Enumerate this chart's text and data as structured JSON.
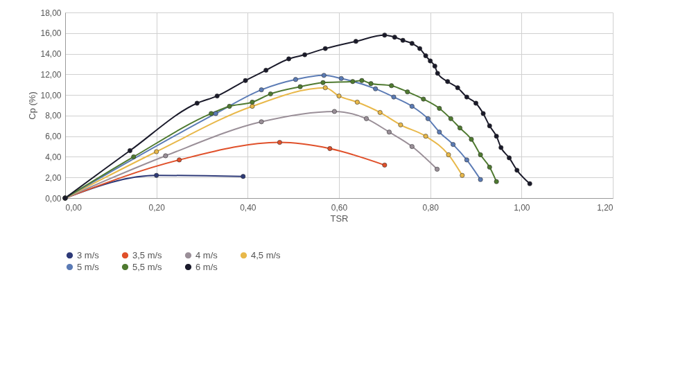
{
  "chart_data": {
    "type": "line",
    "xlabel": "TSR",
    "ylabel": "Cp (%)",
    "xlim": [
      0,
      1.2
    ],
    "ylim": [
      0,
      18
    ],
    "xticks": [
      {
        "value": 0,
        "label": "0,00"
      },
      {
        "value": 0.2,
        "label": "0,20"
      },
      {
        "value": 0.4,
        "label": "0,40"
      },
      {
        "value": 0.6,
        "label": "0,60"
      },
      {
        "value": 0.8,
        "label": "0,80"
      },
      {
        "value": 1,
        "label": "1,00"
      },
      {
        "value": 1.2,
        "label": "1,20"
      }
    ],
    "yticks": [
      {
        "value": 0,
        "label": "0,00"
      },
      {
        "value": 2,
        "label": "2,00"
      },
      {
        "value": 4,
        "label": "4,00"
      },
      {
        "value": 6,
        "label": "6,00"
      },
      {
        "value": 8,
        "label": "8,00"
      },
      {
        "value": 10,
        "label": "10,00"
      },
      {
        "value": 12,
        "label": "12,00"
      },
      {
        "value": 14,
        "label": "14,00"
      },
      {
        "value": 16,
        "label": "16,00"
      },
      {
        "value": 18,
        "label": "18,00"
      }
    ],
    "grid": true,
    "legend": "bottom",
    "marker": "circle",
    "line_style": "solid",
    "series": [
      {
        "name": "3 m/s",
        "color": "#2e3a78",
        "x": [
          0,
          0.2,
          0.39
        ],
        "values": [
          0,
          2.2,
          2.1
        ]
      },
      {
        "name": "3,5 m/s",
        "color": "#e0502a",
        "x": [
          0,
          0.25,
          0.47,
          0.58,
          0.7
        ],
        "values": [
          0,
          3.7,
          5.4,
          4.8,
          3.2
        ]
      },
      {
        "name": "4 m/s",
        "color": "#9a8f98",
        "x": [
          0,
          0.22,
          0.43,
          0.59,
          0.66,
          0.71,
          0.76,
          0.815
        ],
        "values": [
          0,
          4.1,
          7.4,
          8.4,
          7.7,
          6.4,
          5,
          2.8
        ]
      },
      {
        "name": "4,5 m/s",
        "color": "#e8b84a",
        "x": [
          0,
          0.2,
          0.41,
          0.57,
          0.6,
          0.64,
          0.69,
          0.735,
          0.79,
          0.84,
          0.87
        ],
        "values": [
          0,
          4.5,
          8.9,
          10.7,
          9.9,
          9.3,
          8.3,
          7.1,
          6,
          4.2,
          2.2
        ]
      },
      {
        "name": "5 m/s",
        "color": "#5b7bb5",
        "x": [
          0,
          0.33,
          0.43,
          0.505,
          0.567,
          0.605,
          0.68,
          0.72,
          0.76,
          0.795,
          0.82,
          0.85,
          0.88,
          0.91
        ],
        "values": [
          0,
          8.2,
          10.5,
          11.5,
          11.9,
          11.6,
          10.6,
          9.8,
          8.9,
          7.7,
          6.4,
          5.2,
          3.7,
          1.8
        ]
      },
      {
        "name": "5,5 m/s",
        "color": "#4f7a30",
        "x": [
          0,
          0.15,
          0.32,
          0.36,
          0.41,
          0.45,
          0.515,
          0.565,
          0.63,
          0.65,
          0.67,
          0.715,
          0.75,
          0.785,
          0.82,
          0.845,
          0.865,
          0.89,
          0.91,
          0.93,
          0.945
        ],
        "values": [
          0,
          4,
          8.2,
          8.9,
          9.3,
          10.1,
          10.8,
          11.2,
          11.3,
          11.4,
          11.1,
          10.9,
          10.3,
          9.6,
          8.7,
          7.7,
          6.8,
          5.7,
          4.2,
          3,
          1.6
        ]
      },
      {
        "name": "6 m/s",
        "color": "#1a1a2a",
        "x": [
          0,
          0.142,
          0.289,
          0.333,
          0.395,
          0.44,
          0.49,
          0.525,
          0.57,
          0.637,
          0.7,
          0.722,
          0.74,
          0.76,
          0.777,
          0.79,
          0.8,
          0.81,
          0.816,
          0.838,
          0.86,
          0.88,
          0.9,
          0.916,
          0.93,
          0.945,
          0.955,
          0.973,
          0.99,
          1.018
        ],
        "values": [
          0,
          4.6,
          9.2,
          9.9,
          11.4,
          12.4,
          13.5,
          13.9,
          14.5,
          15.2,
          15.8,
          15.6,
          15.3,
          15,
          14.5,
          13.8,
          13.3,
          12.8,
          12.1,
          11.3,
          10.7,
          9.8,
          9.2,
          8.2,
          7,
          6,
          4.9,
          3.9,
          2.7,
          1.4
        ]
      }
    ]
  }
}
